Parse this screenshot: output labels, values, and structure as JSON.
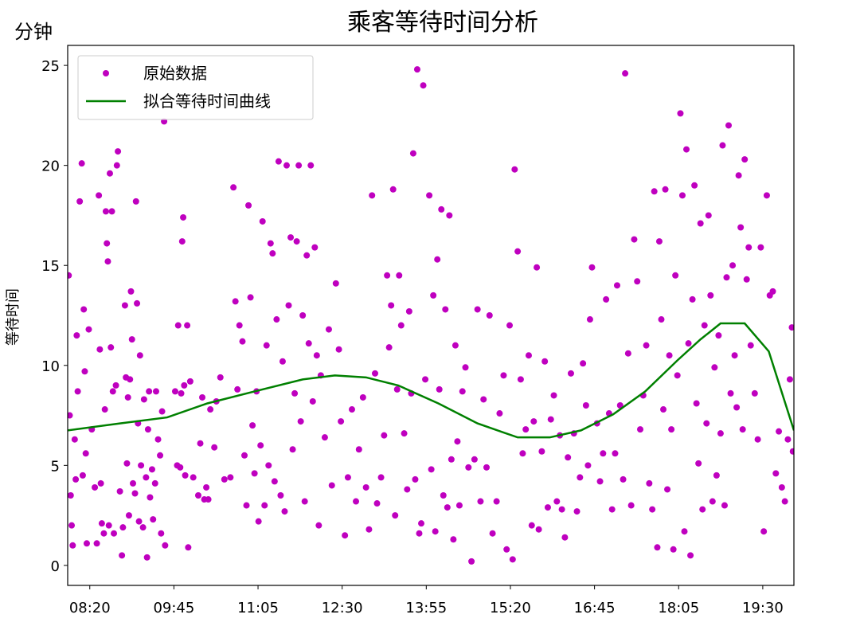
{
  "chart_data": {
    "type": "scatter",
    "title": "乘客等待时间分析",
    "y_unit_annotation": "分钟",
    "y_label": "等待时间",
    "xlim": [
      478,
      1201
    ],
    "ylim": [
      -1,
      26
    ],
    "xticks": [
      {
        "value": 500,
        "label": "08:20"
      },
      {
        "value": 583.75,
        "label": "09:45"
      },
      {
        "value": 667.5,
        "label": "11:05"
      },
      {
        "value": 751.25,
        "label": "12:30"
      },
      {
        "value": 835,
        "label": "13:55"
      },
      {
        "value": 918.75,
        "label": "15:20"
      },
      {
        "value": 1002.5,
        "label": "16:45"
      },
      {
        "value": 1086.25,
        "label": "18:05"
      },
      {
        "value": 1170,
        "label": "19:30"
      }
    ],
    "yticks": [
      0,
      5,
      10,
      15,
      20,
      25
    ],
    "legend": "upper left",
    "series": [
      {
        "name": "原始数据",
        "type": "scatter",
        "color": "#bf00bf",
        "x": [
          479,
          480,
          481,
          482,
          483,
          485,
          486,
          487,
          488,
          490,
          492,
          493,
          494,
          495,
          496,
          497,
          499,
          502,
          505,
          507,
          509,
          510,
          511,
          512,
          514,
          515,
          516,
          517,
          518,
          519,
          520,
          521,
          522,
          523,
          524,
          526,
          527,
          528,
          530,
          532,
          533,
          535,
          536,
          537,
          538,
          539,
          540,
          541,
          542,
          543,
          545,
          546,
          547,
          548,
          549,
          550,
          551,
          553,
          554,
          556,
          557,
          558,
          559,
          560,
          562,
          563,
          565,
          566,
          568,
          570,
          571,
          572,
          574,
          575,
          585,
          587,
          588,
          590,
          591,
          592,
          593,
          594,
          595,
          597,
          598,
          600,
          603,
          608,
          610,
          612,
          614,
          616,
          618,
          620,
          624,
          626,
          630,
          634,
          640,
          643,
          645,
          647,
          649,
          652,
          654,
          656,
          658,
          660,
          662,
          664,
          666,
          668,
          670,
          672,
          674,
          676,
          678,
          680,
          682,
          684,
          686,
          688,
          690,
          692,
          694,
          696,
          698,
          700,
          702,
          704,
          706,
          708,
          710,
          712,
          714,
          716,
          718,
          720,
          722,
          724,
          726,
          728,
          730,
          734,
          738,
          741,
          745,
          748,
          750,
          754,
          757,
          761,
          765,
          768,
          772,
          775,
          778,
          781,
          784,
          786,
          790,
          793,
          796,
          798,
          800,
          802,
          804,
          806,
          808,
          810,
          813,
          816,
          818,
          820,
          822,
          824,
          826,
          828,
          830,
          832,
          834,
          838,
          840,
          842,
          844,
          846,
          848,
          850,
          852,
          854,
          856,
          858,
          860,
          862,
          864,
          866,
          868,
          871,
          874,
          877,
          880,
          883,
          886,
          889,
          892,
          895,
          898,
          901,
          905,
          908,
          912,
          915,
          918,
          921,
          923,
          926,
          929,
          931,
          934,
          937,
          940,
          942,
          945,
          947,
          950,
          953,
          956,
          959,
          962,
          965,
          968,
          970,
          973,
          976,
          979,
          982,
          985,
          988,
          991,
          994,
          996,
          998,
          1000,
          1005,
          1008,
          1011,
          1014,
          1017,
          1020,
          1023,
          1025,
          1028,
          1031,
          1033,
          1036,
          1039,
          1042,
          1045,
          1048,
          1051,
          1054,
          1057,
          1060,
          1062,
          1065,
          1067,
          1069,
          1071,
          1073,
          1075,
          1077,
          1079,
          1081,
          1083,
          1085,
          1088,
          1090,
          1092,
          1094,
          1096,
          1098,
          1100,
          1102,
          1104,
          1106,
          1108,
          1110,
          1112,
          1114,
          1116,
          1118,
          1120,
          1122,
          1124,
          1126,
          1128,
          1130,
          1132,
          1134,
          1136,
          1138,
          1140,
          1142,
          1144,
          1146,
          1148,
          1150,
          1152,
          1154,
          1156,
          1158,
          1162,
          1165,
          1168,
          1171,
          1174,
          1177,
          1180,
          1183,
          1186,
          1189,
          1192,
          1195,
          1197,
          1199,
          1200
        ],
        "values": [
          14.5,
          7.5,
          3.5,
          2.0,
          1.0,
          6.3,
          4.3,
          11.5,
          8.7,
          18.2,
          20.1,
          4.5,
          12.8,
          9.7,
          5.6,
          1.1,
          11.8,
          6.8,
          3.9,
          1.1,
          18.5,
          10.8,
          4.1,
          2.1,
          1.6,
          7.8,
          17.7,
          16.1,
          15.2,
          2.0,
          19.6,
          10.9,
          17.7,
          8.7,
          1.6,
          9.0,
          20.0,
          20.7,
          3.7,
          0.5,
          1.9,
          13.0,
          9.4,
          5.1,
          8.4,
          2.5,
          9.3,
          13.7,
          11.3,
          4.1,
          3.6,
          18.2,
          13.1,
          7.1,
          2.2,
          10.5,
          5.0,
          1.9,
          8.3,
          4.4,
          0.4,
          6.8,
          8.7,
          3.4,
          4.8,
          2.3,
          4.1,
          8.7,
          6.3,
          5.5,
          1.6,
          7.7,
          22.2,
          1.0,
          8.7,
          5.0,
          12.0,
          4.9,
          8.6,
          16.2,
          17.4,
          9.0,
          4.5,
          12.0,
          0.9,
          9.2,
          4.4,
          3.5,
          6.1,
          8.4,
          3.3,
          3.9,
          3.3,
          7.8,
          5.9,
          8.2,
          9.4,
          4.3,
          4.4,
          18.9,
          13.2,
          8.8,
          12.0,
          11.2,
          5.5,
          3.0,
          18.0,
          13.4,
          7.0,
          4.6,
          8.7,
          2.2,
          6.0,
          17.2,
          3.0,
          11.0,
          5.0,
          16.1,
          15.6,
          4.2,
          12.3,
          20.2,
          3.5,
          10.2,
          2.7,
          20.0,
          13.0,
          16.4,
          5.8,
          8.6,
          16.2,
          20.0,
          7.2,
          12.5,
          3.2,
          15.5,
          11.1,
          20.0,
          8.2,
          15.9,
          10.5,
          2.0,
          9.5,
          6.4,
          11.8,
          4.0,
          14.1,
          10.8,
          7.2,
          1.5,
          4.4,
          7.8,
          3.2,
          5.8,
          8.4,
          3.9,
          1.8,
          18.5,
          9.6,
          3.1,
          4.4,
          6.5,
          14.5,
          10.9,
          13.0,
          18.8,
          2.5,
          8.8,
          14.5,
          12.0,
          6.6,
          3.8,
          12.7,
          8.6,
          20.6,
          4.3,
          24.8,
          1.6,
          2.1,
          24.0,
          9.3,
          18.5,
          4.8,
          13.5,
          1.7,
          15.3,
          8.8,
          17.8,
          3.5,
          12.8,
          2.9,
          17.5,
          5.3,
          1.3,
          11.0,
          6.2,
          3.0,
          8.7,
          9.9,
          4.9,
          0.2,
          5.3,
          12.8,
          3.2,
          8.3,
          4.9,
          12.5,
          1.6,
          3.2,
          7.6,
          9.5,
          0.8,
          12.0,
          0.3,
          19.8,
          15.7,
          9.3,
          5.6,
          6.8,
          10.5,
          2.0,
          7.2,
          14.9,
          1.8,
          5.7,
          10.2,
          2.9,
          7.3,
          8.5,
          3.2,
          6.5,
          2.8,
          1.4,
          5.4,
          9.6,
          6.6,
          2.7,
          4.4,
          10.1,
          8.0,
          5.0,
          12.3,
          14.9,
          7.1,
          4.2,
          5.6,
          13.3,
          7.6,
          2.8,
          5.6,
          14.0,
          8.0,
          4.3,
          24.6,
          10.6,
          3.0,
          16.3,
          14.2,
          6.8,
          8.5,
          11.0,
          4.1,
          2.8,
          18.7,
          0.9,
          16.2,
          12.3,
          7.8,
          18.8,
          3.8,
          10.5,
          6.8,
          0.8,
          14.5,
          9.5,
          22.6,
          18.5,
          1.7,
          20.8,
          11.1,
          0.5,
          13.3,
          19.0,
          8.1,
          5.1,
          17.1,
          2.8,
          12.0,
          7.1,
          17.5,
          13.5,
          3.2,
          9.9,
          4.5,
          11.5,
          6.6,
          21.0,
          3.0,
          14.4,
          22.0,
          8.6,
          15.0,
          10.5,
          7.9,
          19.5,
          16.9,
          6.8,
          20.3,
          14.3,
          15.9,
          11.0,
          8.6,
          6.3,
          15.9,
          1.7,
          18.5,
          13.5,
          13.7,
          4.6,
          6.7,
          3.9,
          3.2,
          6.3,
          9.3,
          11.9,
          5.7
        ]
      },
      {
        "name": "拟合等待时间曲线",
        "type": "line",
        "color": "#008000",
        "x": [
          478,
          530,
          577,
          617,
          664,
          712,
          744,
          775,
          807,
          847,
          886,
          926,
          958,
          989,
          1021,
          1053,
          1085,
          1108,
          1128,
          1152,
          1176,
          1201
        ],
        "values": [
          6.75,
          7.1,
          7.4,
          8.1,
          8.7,
          9.3,
          9.5,
          9.4,
          9.0,
          8.1,
          7.1,
          6.4,
          6.4,
          6.75,
          7.55,
          8.7,
          10.25,
          11.3,
          12.1,
          12.1,
          10.7,
          6.75
        ]
      }
    ]
  }
}
